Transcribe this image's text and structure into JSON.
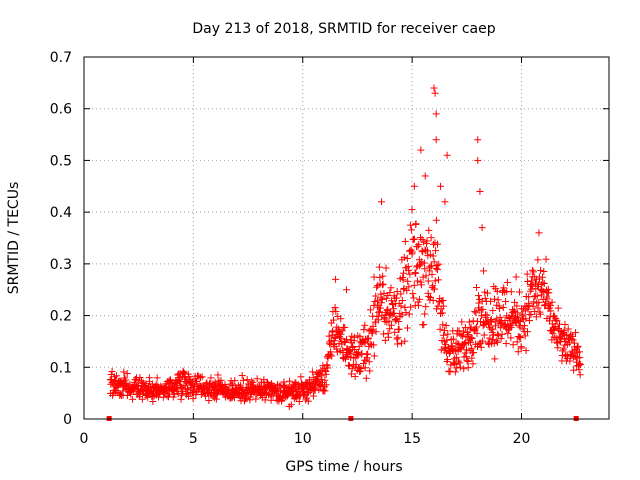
{
  "chart_data": {
    "type": "scatter",
    "title": "Day 213 of 2018, SRMTID for receiver caep",
    "xlabel": "GPS time / hours",
    "ylabel": "SRMTID / TECUs",
    "xlim": [
      0,
      24
    ],
    "ylim": [
      0,
      0.7
    ],
    "x_ticks": [
      0,
      5,
      10,
      15,
      20
    ],
    "x_tick_labels": [
      "0",
      "5",
      "10",
      "15",
      "20"
    ],
    "y_ticks": [
      0,
      0.1,
      0.2,
      0.3,
      0.4,
      0.5,
      0.6,
      0.7
    ],
    "y_tick_labels": [
      "0",
      "0.1",
      "0.2",
      "0.3",
      "0.4",
      "0.5",
      "0.6",
      "0.7"
    ],
    "grid": true,
    "marker": "plus",
    "color": "#ff0000",
    "series": [
      {
        "name": "SRMTID",
        "profile_x": [
          1.2,
          2,
          3,
          4,
          4.5,
          5,
          6,
          7,
          8,
          9,
          10,
          10.5,
          11,
          11.5,
          12,
          12.5,
          13,
          13.5,
          14,
          14.5,
          15,
          15.5,
          16,
          16.5,
          17,
          17.5,
          18,
          18.5,
          19,
          19.5,
          20,
          20.5,
          21,
          21.5,
          22,
          22.5,
          22.7
        ],
        "profile_y": [
          0.07,
          0.06,
          0.055,
          0.06,
          0.075,
          0.065,
          0.06,
          0.055,
          0.055,
          0.05,
          0.055,
          0.065,
          0.08,
          0.18,
          0.13,
          0.12,
          0.14,
          0.25,
          0.2,
          0.21,
          0.3,
          0.3,
          0.3,
          0.15,
          0.12,
          0.15,
          0.2,
          0.2,
          0.2,
          0.2,
          0.19,
          0.24,
          0.25,
          0.17,
          0.14,
          0.13,
          0.12
        ],
        "profile_spread": [
          0.02,
          0.02,
          0.02,
          0.02,
          0.025,
          0.02,
          0.02,
          0.02,
          0.02,
          0.02,
          0.02,
          0.02,
          0.03,
          0.05,
          0.03,
          0.04,
          0.05,
          0.08,
          0.06,
          0.07,
          0.09,
          0.1,
          0.1,
          0.05,
          0.04,
          0.05,
          0.06,
          0.06,
          0.07,
          0.07,
          0.06,
          0.06,
          0.06,
          0.04,
          0.04,
          0.03,
          0.03
        ],
        "peaks": [
          {
            "x": 13.6,
            "y": 0.42
          },
          {
            "x": 15.1,
            "y": 0.45
          },
          {
            "x": 15.4,
            "y": 0.52
          },
          {
            "x": 15.6,
            "y": 0.47
          },
          {
            "x": 16.0,
            "y": 0.64
          },
          {
            "x": 16.05,
            "y": 0.63
          },
          {
            "x": 16.1,
            "y": 0.59
          },
          {
            "x": 16.1,
            "y": 0.54
          },
          {
            "x": 16.3,
            "y": 0.45
          },
          {
            "x": 16.5,
            "y": 0.42
          },
          {
            "x": 16.6,
            "y": 0.51
          },
          {
            "x": 18.0,
            "y": 0.54
          },
          {
            "x": 18.0,
            "y": 0.5
          },
          {
            "x": 18.1,
            "y": 0.44
          },
          {
            "x": 18.2,
            "y": 0.37
          },
          {
            "x": 20.8,
            "y": 0.36
          },
          {
            "x": 11.5,
            "y": 0.27
          },
          {
            "x": 12.0,
            "y": 0.25
          }
        ],
        "gap_markers_x": [
          1.15,
          12.2,
          22.5
        ]
      }
    ]
  }
}
